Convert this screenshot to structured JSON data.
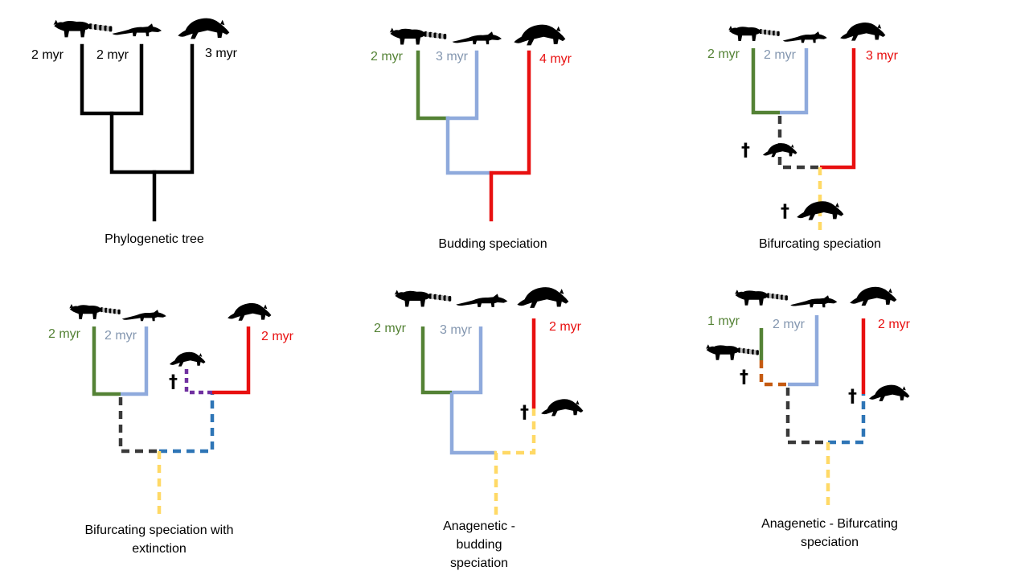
{
  "panels": [
    {
      "caption": "Phylogenetic tree",
      "labels": [
        "2 myr",
        "2 myr",
        "3 myr"
      ],
      "dagger_count": 0
    },
    {
      "caption": "Budding speciation",
      "labels": [
        "2 myr",
        "3 myr",
        "4 myr"
      ],
      "dagger_count": 0
    },
    {
      "caption": "Bifurcating speciation",
      "labels": [
        "2 myr",
        "2 myr",
        "3 myr"
      ],
      "dagger_count": 2
    },
    {
      "caption": "Bifurcating speciation with extinction",
      "labels": [
        "2 myr",
        "2 myr",
        "2 myr"
      ],
      "dagger_count": 1
    },
    {
      "caption": "Anagenetic - budding speciation",
      "labels": [
        "2 myr",
        "3 myr",
        "2 myr"
      ],
      "dagger_count": 1
    },
    {
      "caption": "Anagenetic - Bifurcating speciation",
      "labels": [
        "1 myr",
        "2 myr",
        "2 myr"
      ],
      "dagger_count": 2
    }
  ],
  "dagger_symbol": "†",
  "colors": {
    "black": "#000000",
    "green": "#548235",
    "light_blue": "#8faadc",
    "red": "#e81010",
    "dark_gray": "#3a3a3a",
    "yellow": "#ffd966",
    "purple": "#7030a0",
    "steel_blue": "#2e75b6",
    "orange": "#c55a11",
    "label_blue_gray": "#8497b0"
  },
  "icons": [
    "raccoon-silhouette-icon",
    "coati-silhouette-icon",
    "bear-silhouette-icon",
    "extinct-animal-silhouette-icon"
  ]
}
